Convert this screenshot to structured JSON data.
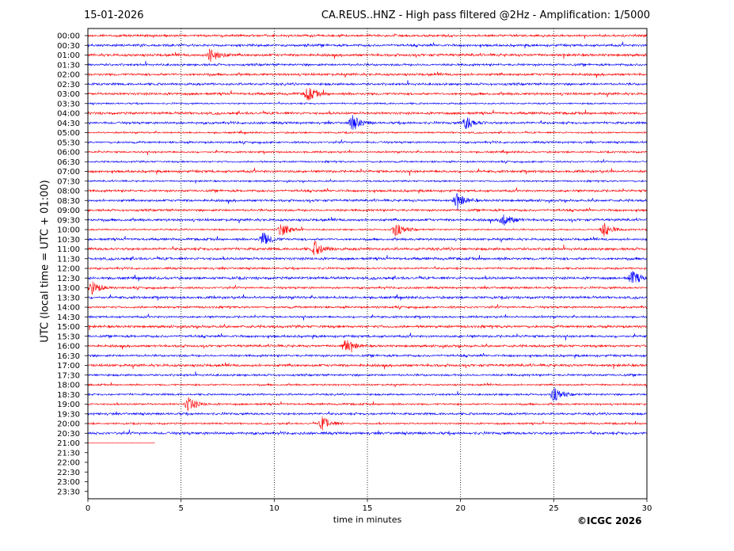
{
  "header": {
    "date": "15-01-2026",
    "title": "CA.REUS..HNZ - High pass filtered @2Hz - Amplification: 1/5000"
  },
  "footer": {
    "copyright": "©ICGC 2026"
  },
  "colors": {
    "trace_a": "#ff0000",
    "trace_b": "#0000ff",
    "grid": "#000000"
  },
  "chart_data": {
    "type": "line",
    "title": "CA.REUS..HNZ - High pass filtered @2Hz - Amplification: 1/5000",
    "xlabel": "time in minutes",
    "ylabel": "UTC (local time = UTC + 01:00)",
    "xlim": [
      0,
      30
    ],
    "x_ticks": [
      0,
      5,
      10,
      15,
      20,
      25,
      30
    ],
    "grid": "vertical dotted lines at x ticks",
    "row_labels": [
      "00:00",
      "00:30",
      "01:00",
      "01:30",
      "02:00",
      "02:30",
      "03:00",
      "03:30",
      "04:00",
      "04:30",
      "05:00",
      "05:30",
      "06:00",
      "06:30",
      "07:00",
      "07:30",
      "08:00",
      "08:30",
      "09:00",
      "09:30",
      "10:00",
      "10:30",
      "11:00",
      "11:30",
      "12:00",
      "12:30",
      "13:00",
      "13:30",
      "14:00",
      "14:30",
      "15:00",
      "15:30",
      "16:00",
      "16:30",
      "17:00",
      "17:30",
      "18:00",
      "18:30",
      "19:00",
      "19:30",
      "20:00",
      "20:30",
      "21:00",
      "21:30",
      "22:00",
      "22:30",
      "23:00",
      "23:30"
    ],
    "row_trace_end_minutes": [
      30,
      30,
      30,
      30,
      30,
      30,
      30,
      30,
      30,
      30,
      30,
      30,
      30,
      30,
      30,
      30,
      30,
      30,
      30,
      30,
      30,
      30,
      30,
      30,
      30,
      30,
      30,
      30,
      30,
      30,
      30,
      30,
      30,
      30,
      30,
      30,
      30,
      30,
      30,
      30,
      30,
      30,
      3.6,
      0,
      0,
      0,
      0,
      0
    ],
    "row_color_pattern": [
      "red",
      "blue"
    ],
    "events": [
      {
        "row": "01:00",
        "minute": 6.6
      },
      {
        "row": "03:00",
        "minute": 11.8
      },
      {
        "row": "04:30",
        "minute": 14.2
      },
      {
        "row": "04:30",
        "minute": 20.3
      },
      {
        "row": "08:30",
        "minute": 19.8
      },
      {
        "row": "09:30",
        "minute": 22.3
      },
      {
        "row": "10:00",
        "minute": 10.4
      },
      {
        "row": "10:00",
        "minute": 16.5
      },
      {
        "row": "10:00",
        "minute": 27.7
      },
      {
        "row": "10:30",
        "minute": 9.4
      },
      {
        "row": "11:00",
        "minute": 12.2
      },
      {
        "row": "12:30",
        "minute": 29.2
      },
      {
        "row": "13:00",
        "minute": 0.2
      },
      {
        "row": "16:00",
        "minute": 13.8
      },
      {
        "row": "18:30",
        "minute": 25.0
      },
      {
        "row": "19:00",
        "minute": 5.4
      },
      {
        "row": "20:00",
        "minute": 12.6
      }
    ]
  }
}
